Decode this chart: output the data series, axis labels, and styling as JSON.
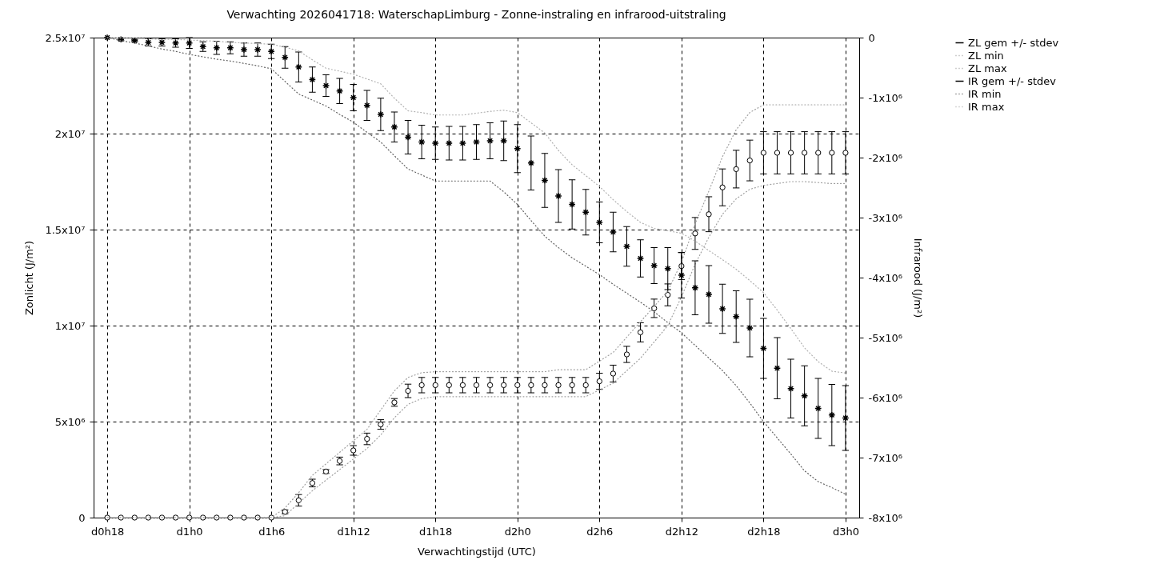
{
  "chart_data": {
    "type": "scatter",
    "title": "Verwachting 2026041718: WaterschapLimburg - Zonne-instraling en infrarood-uitstraling",
    "xlabel": "Verwachtingstijd (UTC)",
    "ylabel": "Zonlicht (J/m²)",
    "y2label": "Infrarood (J/m²)",
    "categories": [
      "d0h18",
      null,
      null,
      null,
      null,
      null,
      "d1h0",
      null,
      null,
      null,
      null,
      null,
      "d1h6",
      null,
      null,
      null,
      null,
      null,
      "d1h12",
      null,
      null,
      null,
      null,
      null,
      "d1h18",
      null,
      null,
      null,
      null,
      null,
      "d2h0",
      null,
      null,
      null,
      null,
      null,
      "d2h6",
      null,
      null,
      null,
      null,
      null,
      "d2h12",
      null,
      null,
      null,
      null,
      null,
      "d2h18",
      null,
      null,
      null,
      null,
      null,
      "d3h0"
    ],
    "ylim": [
      0,
      25000000
    ],
    "yticks": [
      0,
      {
        "value": 5000000,
        "label": "5x10⁶"
      },
      {
        "value": 10000000,
        "label": "1x10⁷"
      },
      {
        "value": 15000000,
        "label": "1.5x10⁷"
      },
      {
        "value": 20000000,
        "label": "2x10⁷"
      },
      {
        "value": 25000000,
        "label": "2.5x10⁷"
      }
    ],
    "y2lim": [
      -8000000,
      0
    ],
    "y2ticks": [
      0,
      {
        "value": -1000000,
        "label": "-1x10⁶"
      },
      {
        "value": -2000000,
        "label": "-2x10⁶"
      },
      {
        "value": -3000000,
        "label": "-3x10⁶"
      },
      {
        "value": -4000000,
        "label": "-4x10⁶"
      },
      {
        "value": -5000000,
        "label": "-5x10⁶"
      },
      {
        "value": -6000000,
        "label": "-6x10⁶"
      },
      {
        "value": -7000000,
        "label": "-7x10⁶"
      },
      {
        "value": -8000000,
        "label": "-8x10⁶"
      }
    ],
    "grid": true,
    "legend": "top right",
    "series": [
      {
        "name": "ZL gem +/- stdev",
        "color": "#000000",
        "marker": "circle",
        "values": [
          0,
          0,
          0,
          0,
          0,
          0,
          0,
          0,
          0,
          0,
          0,
          0,
          0,
          300000,
          900000,
          1800000,
          2400000,
          2950000,
          3500000,
          4100000,
          4850000,
          6000000,
          6600000,
          6900000,
          6900000,
          6900000,
          6900000,
          6900000,
          6900000,
          6900000,
          6900000,
          6900000,
          6900000,
          6900000,
          6900000,
          6900000,
          7100000,
          7500000,
          8500000,
          9650000,
          10900000,
          11600000,
          13100000,
          14800000,
          15800000,
          17200000,
          18150000,
          18600000,
          19000000,
          19000000,
          19000000,
          19000000,
          19000000,
          19000000,
          19000000
        ],
        "errors": [
          null,
          null,
          null,
          null,
          null,
          null,
          null,
          null,
          null,
          null,
          null,
          null,
          null,
          100000,
          300000,
          200000,
          100000,
          200000,
          250000,
          300000,
          250000,
          200000,
          350000,
          400000,
          400000,
          400000,
          400000,
          400000,
          400000,
          400000,
          400000,
          400000,
          400000,
          400000,
          400000,
          400000,
          420000,
          440000,
          420000,
          500000,
          480000,
          570000,
          700000,
          830000,
          910000,
          960000,
          980000,
          1060000,
          1100000,
          1100000,
          1100000,
          1100000,
          1100000,
          1100000,
          1100000
        ]
      },
      {
        "name": "ZL min",
        "color": "#a0a0a0",
        "type": "line",
        "line_style": "dotted",
        "values": [
          0,
          0,
          0,
          0,
          0,
          0,
          0,
          0,
          0,
          0,
          0,
          0,
          0,
          100000,
          750000,
          1400000,
          1950000,
          2500000,
          3050000,
          3600000,
          4300000,
          5200000,
          5900000,
          6200000,
          6300000,
          6300000,
          6300000,
          6300000,
          6300000,
          6300000,
          6300000,
          6300000,
          6300000,
          6300000,
          6300000,
          6300000,
          6650000,
          7000000,
          7650000,
          8300000,
          9150000,
          10000000,
          11500000,
          13200000,
          14600000,
          15800000,
          16600000,
          17100000,
          17300000,
          17400000,
          17500000,
          17500000,
          17450000,
          17400000,
          17400000
        ]
      },
      {
        "name": "ZL max",
        "color": "#a0a0a0",
        "type": "line",
        "line_style": "dotted",
        "values": [
          0,
          0,
          0,
          0,
          0,
          0,
          0,
          0,
          0,
          0,
          0,
          0,
          0,
          500000,
          1300000,
          2200000,
          2800000,
          3400000,
          4000000,
          4600000,
          5600000,
          6600000,
          7300000,
          7550000,
          7600000,
          7600000,
          7600000,
          7600000,
          7600000,
          7600000,
          7600000,
          7600000,
          7600000,
          7700000,
          7700000,
          7700000,
          8150000,
          8600000,
          9400000,
          10200000,
          11000000,
          11800000,
          13300000,
          15300000,
          17000000,
          18800000,
          20200000,
          21100000,
          21500000,
          21500000,
          21500000,
          21500000,
          21500000,
          21500000,
          21500000
        ]
      },
      {
        "name": "IR gem +/- stdev",
        "color": "#000000",
        "marker": "cross",
        "axis": "y2",
        "values": [
          0,
          -30000,
          -50000,
          -80000,
          -80000,
          -90000,
          -90000,
          -150000,
          -170000,
          -170000,
          -200000,
          -200000,
          -230000,
          -330000,
          -490000,
          -700000,
          -800000,
          -890000,
          -1000000,
          -1130000,
          -1280000,
          -1490000,
          -1660000,
          -1740000,
          -1760000,
          -1760000,
          -1760000,
          -1740000,
          -1720000,
          -1720000,
          -1850000,
          -2090000,
          -2380000,
          -2640000,
          -2780000,
          -2910000,
          -3080000,
          -3240000,
          -3480000,
          -3680000,
          -3800000,
          -3850000,
          -3960000,
          -4170000,
          -4280000,
          -4520000,
          -4650000,
          -4840000,
          -5180000,
          -5510000,
          -5850000,
          -5970000,
          -6180000,
          -6290000,
          -6340000
        ],
        "errors": [
          null,
          20000,
          20000,
          60000,
          60000,
          70000,
          90000,
          80000,
          110000,
          100000,
          110000,
          110000,
          120000,
          180000,
          250000,
          210000,
          180000,
          210000,
          220000,
          250000,
          270000,
          250000,
          280000,
          280000,
          270000,
          280000,
          280000,
          290000,
          300000,
          330000,
          400000,
          450000,
          450000,
          440000,
          410000,
          380000,
          340000,
          330000,
          330000,
          310000,
          300000,
          350000,
          380000,
          450000,
          480000,
          410000,
          430000,
          480000,
          500000,
          510000,
          490000,
          500000,
          500000,
          510000,
          540000
        ]
      },
      {
        "name": "IR min",
        "color": "#606060",
        "type": "line",
        "line_style": "dotted",
        "axis": "y2",
        "values": [
          0,
          -50000,
          -90000,
          -140000,
          -190000,
          -230000,
          -280000,
          -320000,
          -360000,
          -390000,
          -430000,
          -470000,
          -520000,
          -730000,
          -940000,
          -1040000,
          -1140000,
          -1280000,
          -1410000,
          -1580000,
          -1740000,
          -1970000,
          -2190000,
          -2290000,
          -2390000,
          -2390000,
          -2390000,
          -2390000,
          -2390000,
          -2570000,
          -2780000,
          -3050000,
          -3310000,
          -3500000,
          -3670000,
          -3810000,
          -3950000,
          -4110000,
          -4260000,
          -4410000,
          -4570000,
          -4750000,
          -4920000,
          -5130000,
          -5340000,
          -5550000,
          -5800000,
          -6090000,
          -6400000,
          -6670000,
          -6940000,
          -7220000,
          -7400000,
          -7500000,
          -7610000
        ]
      },
      {
        "name": "IR max",
        "color": "#b0b0b0",
        "type": "line",
        "line_style": "dotted",
        "axis": "y2",
        "values": [
          0,
          -10000,
          -10000,
          -20000,
          -30000,
          -30000,
          -40000,
          -50000,
          -60000,
          -80000,
          -90000,
          -100000,
          -110000,
          -160000,
          -220000,
          -370000,
          -510000,
          -560000,
          -610000,
          -690000,
          -770000,
          -1010000,
          -1220000,
          -1250000,
          -1290000,
          -1290000,
          -1290000,
          -1260000,
          -1230000,
          -1210000,
          -1250000,
          -1420000,
          -1590000,
          -1880000,
          -2120000,
          -2300000,
          -2480000,
          -2700000,
          -2900000,
          -3080000,
          -3180000,
          -3220000,
          -3260000,
          -3390000,
          -3550000,
          -3700000,
          -3860000,
          -4050000,
          -4250000,
          -4540000,
          -4850000,
          -5170000,
          -5400000,
          -5560000,
          -5590000
        ]
      }
    ]
  }
}
